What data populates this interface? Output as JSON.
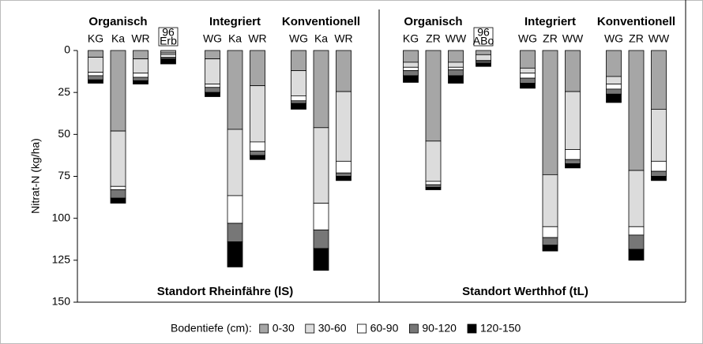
{
  "chart_data": {
    "type": "stacked_bar",
    "ylabel": "Nitrat-N (kg/ha)",
    "ylim": [
      0,
      150
    ],
    "yticks": [
      0,
      25,
      50,
      75,
      100,
      125,
      150
    ],
    "y_inverted": true,
    "legend_title": "Bodentiefe (cm):",
    "panels": [
      {
        "title": "Standort Rheinfähre (lS)",
        "groups": [
          {
            "name": "Organisch",
            "categories": [
              "KG",
              "Ka",
              "WR"
            ]
          },
          {
            "name": "96",
            "categories": [
              "Erb"
            ],
            "boxed": true
          },
          {
            "name": "Integriert",
            "categories": [
              "WG",
              "Ka",
              "WR"
            ]
          },
          {
            "name": "Konventionell",
            "categories": [
              "WG",
              "Ka",
              "WR"
            ]
          }
        ]
      },
      {
        "title": "Standort Werthhof (tL)",
        "groups": [
          {
            "name": "Organisch",
            "categories": [
              "KG",
              "ZR",
              "WW"
            ]
          },
          {
            "name": "96",
            "categories": [
              "ABo"
            ],
            "boxed": true
          },
          {
            "name": "Integriert",
            "categories": [
              "WG",
              "ZR",
              "WW"
            ]
          },
          {
            "name": "Konventionell",
            "categories": [
              "WG",
              "ZR",
              "WW"
            ]
          }
        ]
      }
    ],
    "series": [
      {
        "name": "0-30",
        "color": "#a6a6a6",
        "values": [
          [
            4,
            48,
            5,
            1.5,
            5,
            47,
            21,
            12,
            46,
            24.5
          ],
          [
            7,
            54,
            7,
            2.5,
            10.5,
            74,
            24.5,
            15.5,
            71.5,
            35
          ]
        ]
      },
      {
        "name": "30-60",
        "color": "#dcdcdc",
        "values": [
          [
            9,
            33,
            8.5,
            1,
            15,
            39.5,
            33.5,
            15,
            45,
            41.5
          ],
          [
            3,
            24,
            3,
            3.5,
            3,
            31,
            34.5,
            4.5,
            33.5,
            31
          ]
        ]
      },
      {
        "name": "60-90",
        "color": "#ffffff",
        "values": [
          [
            2,
            2,
            2.5,
            1.5,
            2,
            16.5,
            5.5,
            3,
            16,
            7
          ],
          [
            2,
            2,
            1.5,
            0.5,
            3,
            6.5,
            6,
            3,
            5,
            6
          ]
        ]
      },
      {
        "name": "90-120",
        "color": "#777777",
        "values": [
          [
            2.5,
            5,
            2,
            1,
            3,
            11,
            2.5,
            1.5,
            11,
            2
          ],
          [
            3,
            1.5,
            3.5,
            1,
            3,
            4.5,
            2.5,
            3,
            8.5,
            3
          ]
        ]
      },
      {
        "name": "120-150",
        "color": "#000000",
        "values": [
          [
            2,
            3,
            2,
            3,
            2.5,
            15,
            2.5,
            3.5,
            13,
            2.5
          ],
          [
            4,
            1.5,
            4.5,
            2,
            3,
            3.5,
            2.5,
            5,
            6.5,
            2.5
          ]
        ]
      }
    ]
  }
}
